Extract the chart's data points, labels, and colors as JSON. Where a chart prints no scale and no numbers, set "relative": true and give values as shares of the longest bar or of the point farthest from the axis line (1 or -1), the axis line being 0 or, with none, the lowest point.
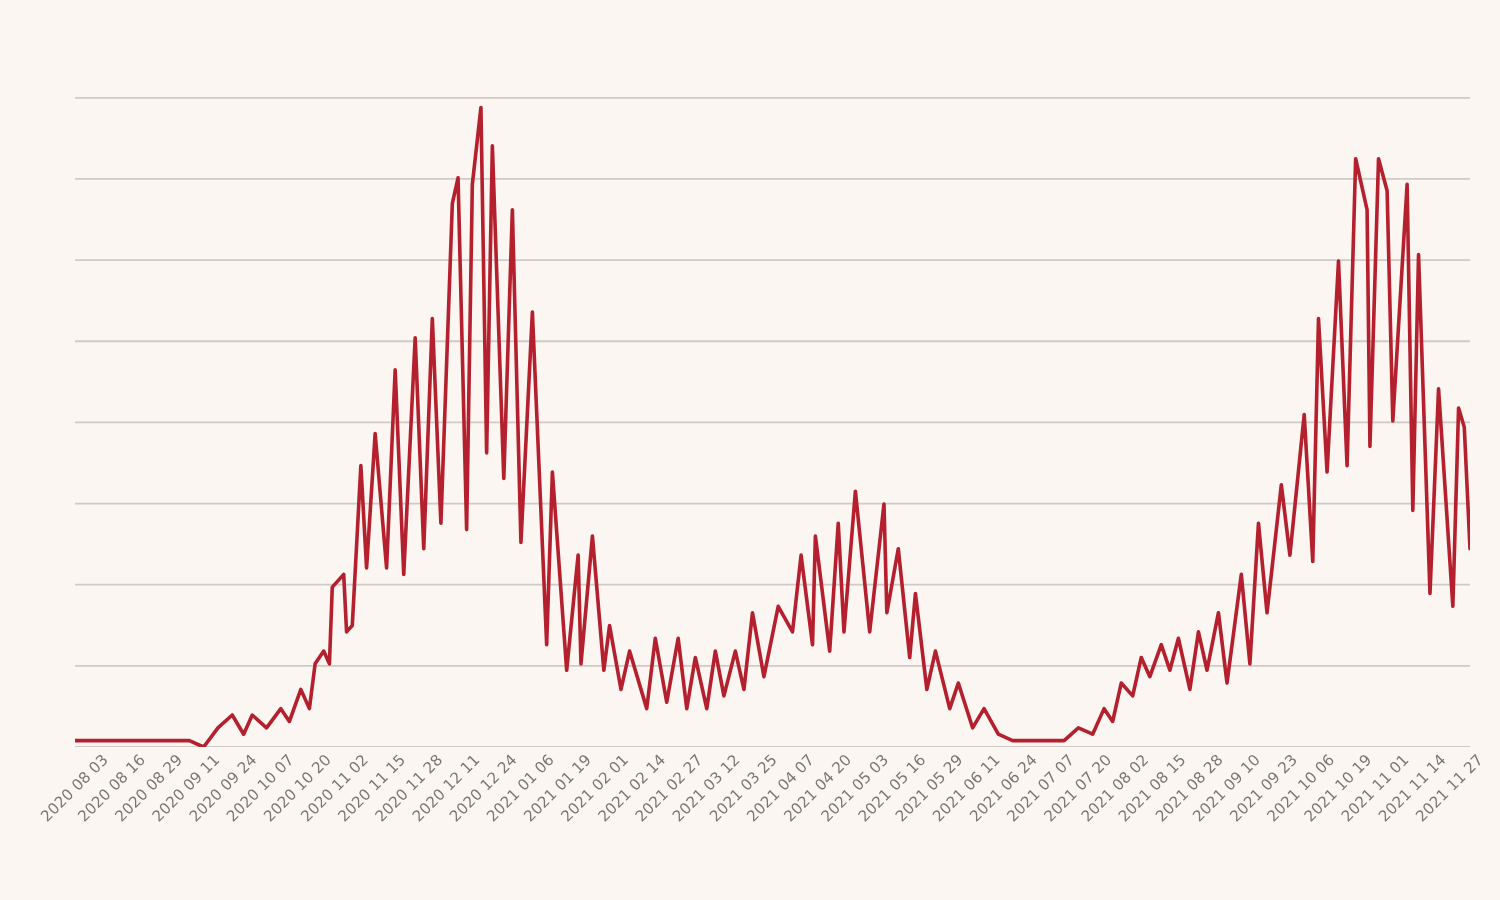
{
  "chart_data": {
    "type": "line",
    "relative": true,
    "grid": "y",
    "tick_labels": "x",
    "line_style": "solid",
    "marker": "none",
    "xlim": [
      "2020-08-03",
      "2021-12-04"
    ],
    "xticks": [
      {
        "value": "2020-08-03",
        "label": "2020 08 03"
      },
      {
        "value": "2020-08-16",
        "label": "2020 08 16"
      },
      {
        "value": "2020-08-29",
        "label": "2020 08 29"
      },
      {
        "value": "2020-09-11",
        "label": "2020 09 11"
      },
      {
        "value": "2020-09-24",
        "label": "2020 09 24"
      },
      {
        "value": "2020-10-07",
        "label": "2020 10 07"
      },
      {
        "value": "2020-10-20",
        "label": "2020 10 20"
      },
      {
        "value": "2020-11-02",
        "label": "2020 11 02"
      },
      {
        "value": "2020-11-15",
        "label": "2020 11 15"
      },
      {
        "value": "2020-11-28",
        "label": "2020 11 28"
      },
      {
        "value": "2020-12-11",
        "label": "2020 12 11"
      },
      {
        "value": "2020-12-24",
        "label": "2020 12 24"
      },
      {
        "value": "2021-01-06",
        "label": "2021 01 06"
      },
      {
        "value": "2021-01-19",
        "label": "2021 01 19"
      },
      {
        "value": "2021-02-01",
        "label": "2021 02 01"
      },
      {
        "value": "2021-02-14",
        "label": "2021 02 14"
      },
      {
        "value": "2021-02-27",
        "label": "2021 02 27"
      },
      {
        "value": "2021-03-12",
        "label": "2021 03 12"
      },
      {
        "value": "2021-03-25",
        "label": "2021 03 25"
      },
      {
        "value": "2021-04-07",
        "label": "2021 04 07"
      },
      {
        "value": "2021-04-20",
        "label": "2021 04 20"
      },
      {
        "value": "2021-05-03",
        "label": "2021 05 03"
      },
      {
        "value": "2021-05-16",
        "label": "2021 05 16"
      },
      {
        "value": "2021-05-29",
        "label": "2021 05 29"
      },
      {
        "value": "2021-06-11",
        "label": "2021 06 11"
      },
      {
        "value": "2021-06-24",
        "label": "2021 06 24"
      },
      {
        "value": "2021-07-07",
        "label": "2021 07 07"
      },
      {
        "value": "2021-07-20",
        "label": "2021 07 20"
      },
      {
        "value": "2021-08-02",
        "label": "2021 08 02"
      },
      {
        "value": "2021-08-15",
        "label": "2021 08 15"
      },
      {
        "value": "2021-08-28",
        "label": "2021 08 28"
      },
      {
        "value": "2021-09-10",
        "label": "2021 09 10"
      },
      {
        "value": "2021-09-23",
        "label": "2021 09 23"
      },
      {
        "value": "2021-10-06",
        "label": "2021 10 06"
      },
      {
        "value": "2021-10-19",
        "label": "2021 10 19"
      },
      {
        "value": "2021-11-01",
        "label": "2021 11 01"
      },
      {
        "value": "2021-11-14",
        "label": "2021 11 14"
      },
      {
        "value": "2021-11-27",
        "label": "2021 11 27"
      }
    ],
    "x": [
      "2020-08-03",
      "2020-08-16",
      "2020-08-30",
      "2020-09-12",
      "2020-09-17",
      "2020-09-22",
      "2020-09-27",
      "2020-10-01",
      "2020-10-04",
      "2020-10-09",
      "2020-10-14",
      "2020-10-17",
      "2020-10-21",
      "2020-10-24",
      "2020-10-26",
      "2020-10-29",
      "2020-10-31",
      "2020-11-01",
      "2020-11-05",
      "2020-11-06",
      "2020-11-08",
      "2020-11-11",
      "2020-11-13",
      "2020-11-16",
      "2020-11-20",
      "2020-11-23",
      "2020-11-26",
      "2020-11-30",
      "2020-12-03",
      "2020-12-06",
      "2020-12-09",
      "2020-12-13",
      "2020-12-15",
      "2020-12-18",
      "2020-12-20",
      "2020-12-23",
      "2020-12-25",
      "2020-12-27",
      "2020-12-31",
      "2021-01-03",
      "2021-01-06",
      "2021-01-10",
      "2021-01-15",
      "2021-01-17",
      "2021-01-22",
      "2021-01-26",
      "2021-01-27",
      "2021-01-31",
      "2021-02-04",
      "2021-02-06",
      "2021-02-10",
      "2021-02-13",
      "2021-02-19",
      "2021-02-22",
      "2021-02-26",
      "2021-03-02",
      "2021-03-05",
      "2021-03-08",
      "2021-03-12",
      "2021-03-15",
      "2021-03-18",
      "2021-03-22",
      "2021-03-25",
      "2021-03-28",
      "2021-04-01",
      "2021-04-06",
      "2021-04-11",
      "2021-04-14",
      "2021-04-18",
      "2021-04-19",
      "2021-04-24",
      "2021-04-27",
      "2021-04-29",
      "2021-05-03",
      "2021-05-08",
      "2021-05-13",
      "2021-05-14",
      "2021-05-18",
      "2021-05-22",
      "2021-05-24",
      "2021-05-28",
      "2021-05-31",
      "2021-06-05",
      "2021-06-08",
      "2021-06-13",
      "2021-06-17",
      "2021-06-22",
      "2021-06-27",
      "2021-07-03",
      "2021-07-10",
      "2021-07-15",
      "2021-07-20",
      "2021-07-25",
      "2021-07-29",
      "2021-08-01",
      "2021-08-04",
      "2021-08-08",
      "2021-08-11",
      "2021-08-14",
      "2021-08-18",
      "2021-08-21",
      "2021-08-24",
      "2021-08-28",
      "2021-08-31",
      "2021-09-03",
      "2021-09-07",
      "2021-09-10",
      "2021-09-15",
      "2021-09-18",
      "2021-09-21",
      "2021-09-24",
      "2021-09-29",
      "2021-10-02",
      "2021-10-07",
      "2021-10-10",
      "2021-10-12",
      "2021-10-15",
      "2021-10-19",
      "2021-10-22",
      "2021-10-25",
      "2021-10-29",
      "2021-10-30",
      "2021-11-02",
      "2021-11-05",
      "2021-11-07",
      "2021-11-12",
      "2021-11-14",
      "2021-11-16",
      "2021-11-20",
      "2021-11-23",
      "2021-11-28",
      "2021-11-30",
      "2021-12-02",
      "2021-12-04"
    ],
    "series": [
      {
        "color": "#b5202e",
        "values": [
          0.01,
          0.01,
          0.01,
          0.01,
          0.0,
          0.03,
          0.05,
          0.02,
          0.05,
          0.03,
          0.06,
          0.04,
          0.09,
          0.06,
          0.13,
          0.15,
          0.13,
          0.25,
          0.27,
          0.18,
          0.19,
          0.44,
          0.28,
          0.49,
          0.28,
          0.59,
          0.27,
          0.64,
          0.31,
          0.67,
          0.35,
          0.85,
          0.89,
          0.34,
          0.88,
          1.0,
          0.46,
          0.94,
          0.42,
          0.84,
          0.32,
          0.68,
          0.16,
          0.43,
          0.12,
          0.3,
          0.13,
          0.33,
          0.12,
          0.19,
          0.09,
          0.15,
          0.06,
          0.17,
          0.07,
          0.17,
          0.06,
          0.14,
          0.06,
          0.15,
          0.08,
          0.15,
          0.09,
          0.21,
          0.11,
          0.22,
          0.18,
          0.3,
          0.16,
          0.33,
          0.15,
          0.35,
          0.18,
          0.4,
          0.18,
          0.38,
          0.21,
          0.31,
          0.14,
          0.24,
          0.09,
          0.15,
          0.06,
          0.1,
          0.03,
          0.06,
          0.02,
          0.01,
          0.01,
          0.01,
          0.01,
          0.03,
          0.02,
          0.06,
          0.04,
          0.1,
          0.08,
          0.14,
          0.11,
          0.16,
          0.12,
          0.17,
          0.09,
          0.18,
          0.12,
          0.21,
          0.1,
          0.27,
          0.13,
          0.35,
          0.21,
          0.41,
          0.3,
          0.52,
          0.29,
          0.67,
          0.43,
          0.76,
          0.44,
          0.92,
          0.84,
          0.47,
          0.92,
          0.87,
          0.51,
          0.88,
          0.37,
          0.77,
          0.24,
          0.56,
          0.22,
          0.53,
          0.5,
          0.31
        ]
      }
    ]
  }
}
